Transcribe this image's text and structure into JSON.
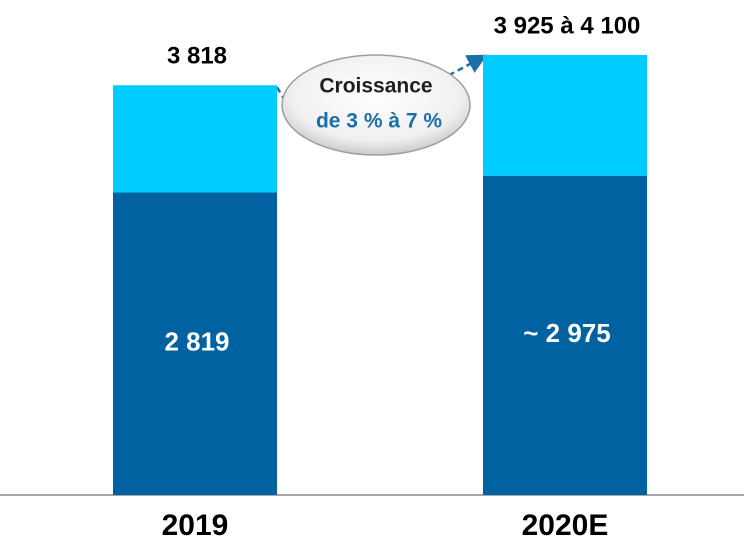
{
  "chart_data": {
    "type": "stacked_bar",
    "categories": [
      "2019",
      "2020E"
    ],
    "series": [
      {
        "color": "#0062a1",
        "values": [
          2819,
          2975
        ],
        "value_labels": [
          "2 819",
          "~ 2 975"
        ]
      },
      {
        "color": "#00ccff",
        "values": [
          999,
          1125
        ]
      }
    ],
    "total_labels": [
      "3 818",
      "3 925 à 4 100"
    ],
    "annotation": [
      "Croissance",
      "de 3 % à 7 %"
    ]
  }
}
